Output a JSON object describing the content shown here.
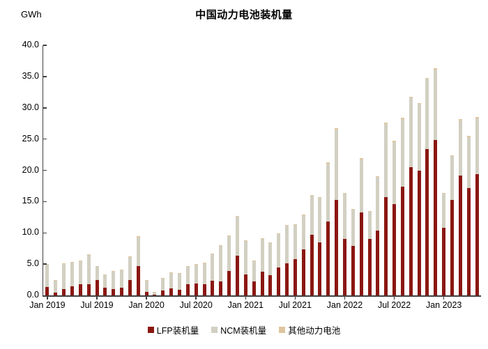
{
  "title": "中国动力电池装机量",
  "unit_label": "GWh",
  "colors": {
    "lfp": "#8b1711",
    "ncm": "#d2d0c2",
    "other": "#dfc69e",
    "axis": "#3f3f3f",
    "text": "#000000"
  },
  "chart_data": {
    "type": "bar",
    "stacked": true,
    "title": "中国动力电池装机量",
    "ylabel": "GWh",
    "ylim": [
      0,
      40
    ],
    "ytick_step": 5,
    "y_tick_labels": [
      "0.0",
      "5.0",
      "10.0",
      "15.0",
      "20.0",
      "25.0",
      "30.0",
      "35.0",
      "40.0"
    ],
    "grid": false,
    "legend_position": "bottom",
    "x_tick_positions": [
      0,
      6,
      12,
      18,
      24,
      30,
      36,
      42,
      48
    ],
    "x_tick_labels": [
      "Jan 2019",
      "Jul 2019",
      "Jan 2020",
      "Jul 2020",
      "Jan 2021",
      "Jul 2021",
      "Jan 2022",
      "Jul 2022",
      "Jan 2023"
    ],
    "months": [
      "2019-01",
      "2019-02",
      "2019-03",
      "2019-04",
      "2019-05",
      "2019-06",
      "2019-07",
      "2019-08",
      "2019-09",
      "2019-10",
      "2019-11",
      "2019-12",
      "2020-01",
      "2020-02",
      "2020-03",
      "2020-04",
      "2020-05",
      "2020-06",
      "2020-07",
      "2020-08",
      "2020-09",
      "2020-10",
      "2020-11",
      "2020-12",
      "2021-01",
      "2021-02",
      "2021-03",
      "2021-04",
      "2021-05",
      "2021-06",
      "2021-07",
      "2021-08",
      "2021-09",
      "2021-10",
      "2021-11",
      "2021-12",
      "2022-01",
      "2022-02",
      "2022-03",
      "2022-04",
      "2022-05",
      "2022-06",
      "2022-07",
      "2022-08",
      "2022-09",
      "2022-10",
      "2022-11",
      "2022-12",
      "2023-01",
      "2023-02",
      "2023-03",
      "2023-04",
      "2023-05"
    ],
    "series": [
      {
        "name": "LFP装机量",
        "color": "#8b1711",
        "values": [
          1.35,
          0.5,
          1.05,
          1.5,
          1.8,
          1.75,
          2.5,
          1.2,
          1.0,
          1.25,
          2.4,
          4.7,
          0.6,
          0.15,
          0.75,
          1.1,
          0.9,
          1.75,
          1.85,
          1.75,
          2.35,
          2.2,
          3.85,
          6.4,
          3.3,
          2.2,
          3.8,
          3.2,
          4.5,
          5.1,
          5.8,
          7.3,
          9.7,
          8.5,
          11.8,
          15.3,
          9.0,
          7.9,
          13.3,
          9.0,
          10.4,
          15.7,
          14.6,
          17.4,
          20.5,
          20.0,
          23.4,
          24.8,
          10.8,
          15.3,
          19.2,
          17.2,
          19.4
        ]
      },
      {
        "name": "NCM装机量",
        "color": "#d2d0c2",
        "values": [
          3.5,
          1.85,
          3.95,
          3.8,
          3.65,
          4.7,
          2.15,
          2.15,
          2.8,
          2.75,
          3.7,
          4.6,
          1.75,
          0.43,
          2.0,
          2.55,
          2.65,
          2.9,
          3.1,
          3.4,
          4.25,
          5.7,
          5.6,
          6.2,
          5.4,
          3.35,
          5.2,
          5.2,
          5.3,
          6.1,
          5.5,
          5.5,
          6.2,
          7.1,
          9.3,
          11.2,
          7.3,
          5.8,
          8.4,
          4.4,
          8.5,
          11.7,
          9.9,
          10.8,
          11.1,
          10.6,
          11.2,
          11.3,
          5.5,
          7.0,
          8.8,
          8.1,
          8.9
        ]
      },
      {
        "name": "其他动力电池",
        "color": "#dfc69e",
        "values": [
          0.15,
          0.05,
          0.1,
          0.1,
          0.15,
          0.15,
          0.05,
          0.05,
          0.1,
          0.1,
          0.1,
          0.2,
          0.05,
          0.02,
          0.05,
          0.05,
          0.05,
          0.05,
          0.05,
          0.05,
          0.1,
          0.1,
          0.15,
          0.1,
          0.1,
          0.05,
          0.1,
          0.1,
          0.1,
          0.1,
          0.1,
          0.1,
          0.1,
          0.1,
          0.2,
          0.2,
          0.1,
          0.1,
          0.2,
          0.1,
          0.1,
          0.2,
          0.2,
          0.2,
          0.2,
          0.2,
          0.2,
          0.2,
          0.1,
          0.1,
          0.2,
          0.2,
          0.2
        ]
      }
    ]
  }
}
